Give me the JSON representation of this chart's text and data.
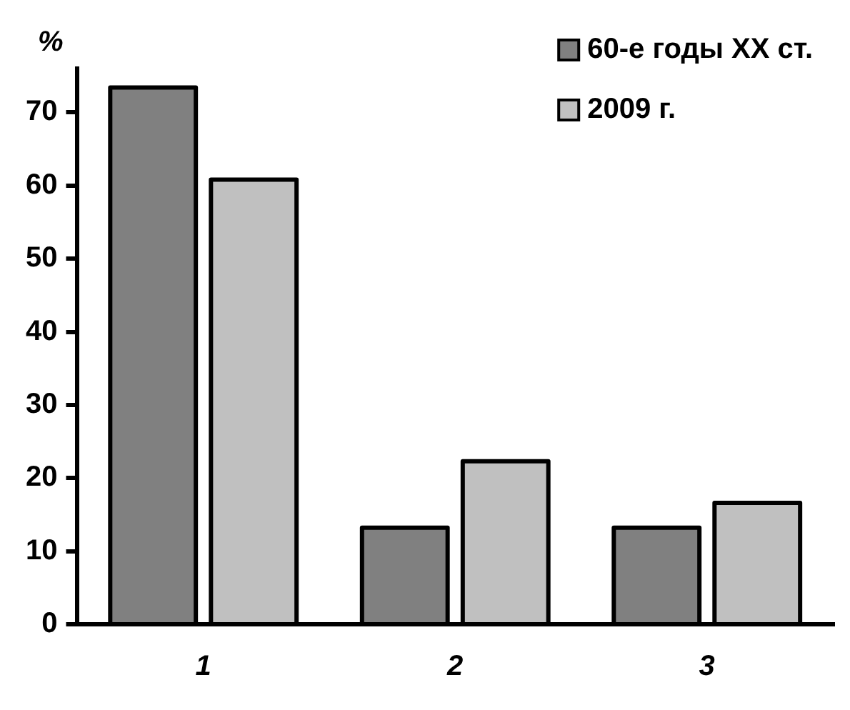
{
  "chart_data": {
    "type": "bar",
    "ylabel": "%",
    "categories": [
      "1",
      "2",
      "3"
    ],
    "series": [
      {
        "name": "60-е годы ХХ ст.",
        "color": "#808080",
        "values": [
          73.4,
          13.2,
          13.2
        ]
      },
      {
        "name": "2009 г.",
        "color": "#c0c0c0",
        "values": [
          60.8,
          22.3,
          16.6
        ]
      }
    ],
    "ylim": [
      0,
      76
    ],
    "yticks": [
      0,
      10,
      20,
      30,
      40,
      50,
      60,
      70
    ],
    "grid": false,
    "legend": "top right"
  }
}
